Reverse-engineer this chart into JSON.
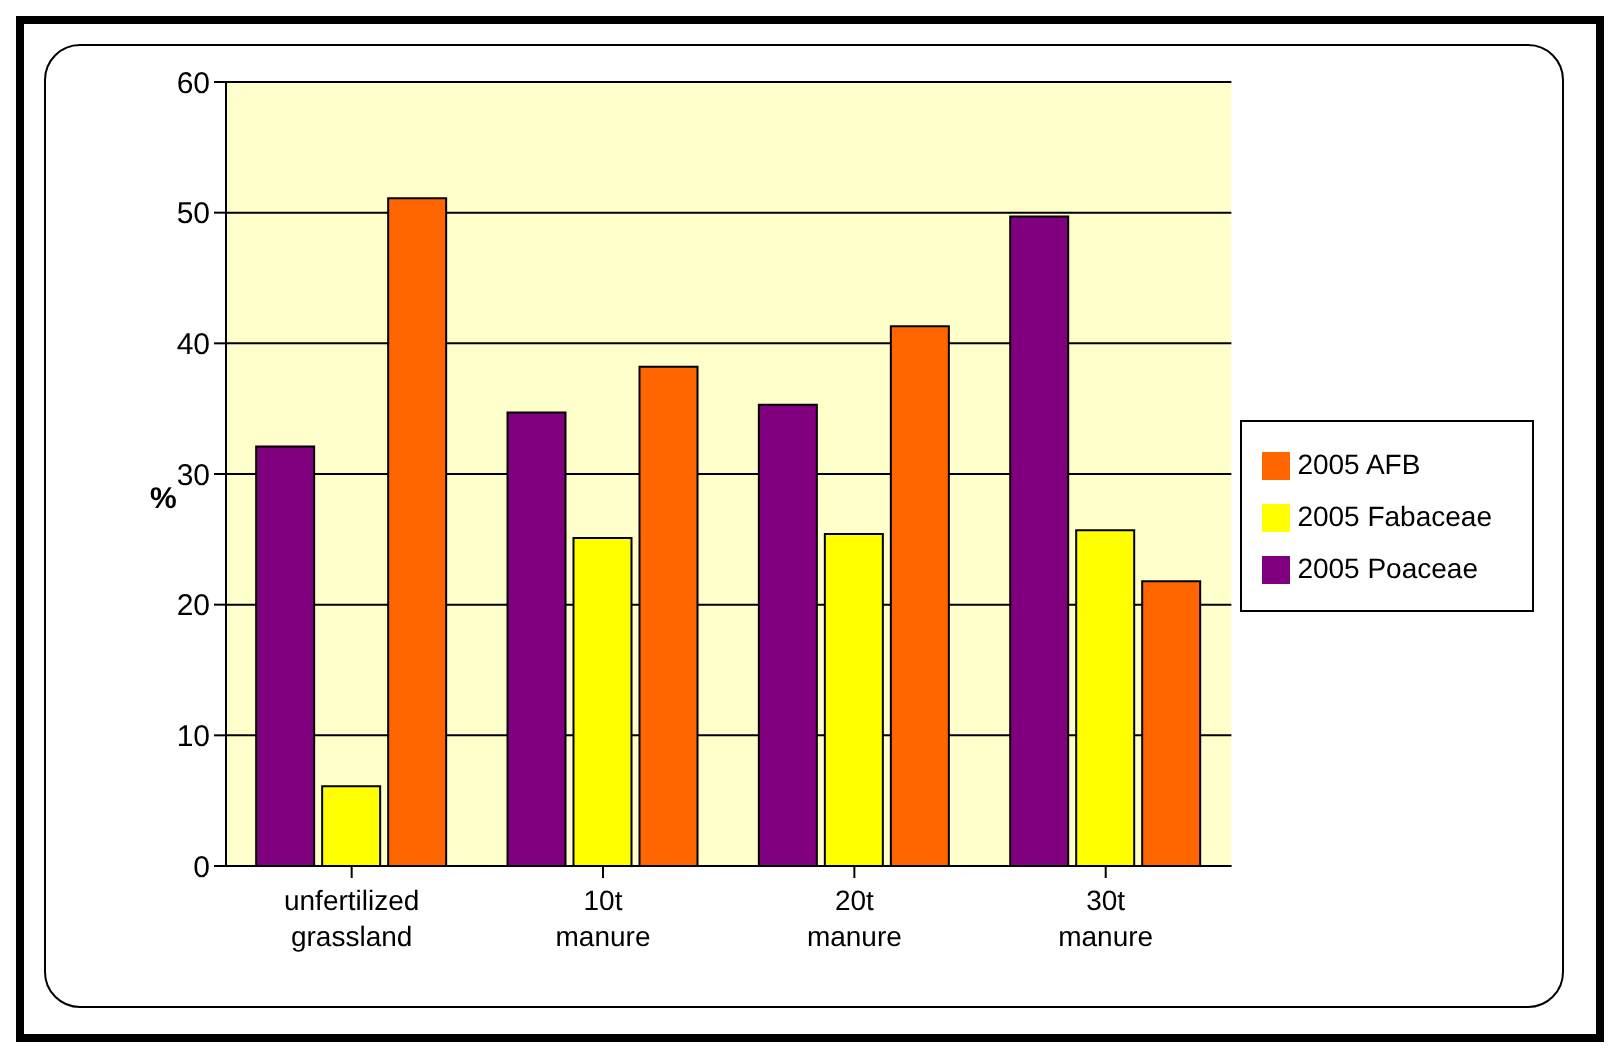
{
  "chart_data": {
    "type": "bar",
    "ylabel": "%",
    "categories": [
      "unfertilized grassland",
      "10t manure",
      "20t manure",
      "30t manure"
    ],
    "series": [
      {
        "name": "2005 Poaceae",
        "color": "#800080",
        "values": [
          32.1,
          34.7,
          35.3,
          49.7
        ]
      },
      {
        "name": "2005 Fabaceae",
        "color": "#ffff00",
        "values": [
          6.1,
          25.1,
          25.4,
          25.7
        ]
      },
      {
        "name": "2005 AFB",
        "color": "#ff6600",
        "values": [
          51.1,
          38.2,
          41.3,
          21.8
        ]
      }
    ],
    "ylim": [
      0,
      60
    ],
    "yticks": [
      0,
      10,
      20,
      30,
      40,
      50,
      60
    ],
    "grid": "y",
    "legend": "right"
  }
}
